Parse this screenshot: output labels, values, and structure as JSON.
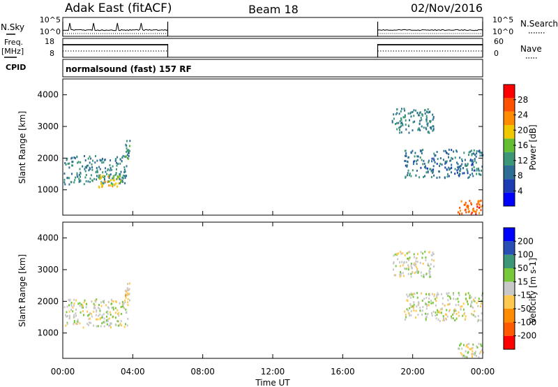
{
  "header": {
    "station": "Adak East (fitACF)",
    "beam": "Beam 18",
    "date": "02/Nov/2016"
  },
  "panels": {
    "nsky": {
      "label": "N.Sky",
      "ticks": [
        "10^5",
        "10^0"
      ],
      "right_label": "N.Search",
      "right_ticks": [
        "10^5",
        "10^0"
      ]
    },
    "freq": {
      "label_line1": "Freq.",
      "label_line2": "[MHz]",
      "ticks": [
        "18",
        "8"
      ],
      "right_label": "Nave",
      "right_ticks": [
        "60",
        "0"
      ],
      "cpid_label": "CPID"
    },
    "cpid": {
      "text": "normalsound (fast) 157 RF"
    }
  },
  "colors": {
    "power": [
      "#0000ff",
      "#1c3cb4",
      "#2e6e96",
      "#3c9678",
      "#64be32",
      "#f0c800",
      "#ff8c00",
      "#ff5000",
      "#ff0000"
    ],
    "velocity": [
      "#ff0000",
      "#ff5a00",
      "#ff8c00",
      "#ffc850",
      "#c8c8c8",
      "#78c83c",
      "#3c9678",
      "#2850b4",
      "#0000ff"
    ]
  },
  "chart_data": [
    {
      "type": "heatmap",
      "name": "power",
      "ylabel": "Slant Range [km]",
      "yticks": [
        1000,
        2000,
        3000,
        4000
      ],
      "ylim": [
        200,
        4500
      ],
      "colorbar": {
        "label": "Power [dB]",
        "ticks": [
          "4",
          "8",
          "12",
          "16",
          "20",
          "24",
          "28"
        ],
        "range": [
          0,
          30
        ]
      },
      "regions": [
        {
          "x_start": 0.05,
          "x_end": 3.7,
          "y_start": 1200,
          "y_end": 2100,
          "value": 10
        },
        {
          "x_start": 3.5,
          "x_end": 3.8,
          "y_start": 2000,
          "y_end": 2600,
          "value": 12
        },
        {
          "x_start": 2.0,
          "x_end": 3.3,
          "y_start": 1100,
          "y_end": 1500,
          "value": 18
        },
        {
          "x_start": 19.5,
          "x_end": 24,
          "y_start": 1400,
          "y_end": 2300,
          "value": 9
        },
        {
          "x_start": 18.8,
          "x_end": 21.2,
          "y_start": 2800,
          "y_end": 3600,
          "value": 10
        },
        {
          "x_start": 22.5,
          "x_end": 24,
          "y_start": 250,
          "y_end": 700,
          "value": 24
        }
      ]
    },
    {
      "type": "heatmap",
      "name": "velocity",
      "ylabel": "Slant Range [km]",
      "yticks": [
        1000,
        2000,
        3000,
        4000
      ],
      "ylim": [
        200,
        4500
      ],
      "colorbar": {
        "label": "Velocity [m s-1]",
        "ticks": [
          "-200",
          "-100",
          "-50",
          "-15",
          "15",
          "50",
          "100",
          "200"
        ],
        "range": [
          -250,
          250
        ]
      },
      "regions": [
        {
          "x_start": 0.05,
          "x_end": 3.7,
          "y_start": 1200,
          "y_end": 2100,
          "value": 0
        },
        {
          "x_start": 3.5,
          "x_end": 3.8,
          "y_start": 2000,
          "y_end": 2600,
          "value": -30
        },
        {
          "x_start": 19.5,
          "x_end": 24,
          "y_start": 1400,
          "y_end": 2300,
          "value": 0
        },
        {
          "x_start": 18.8,
          "x_end": 21.2,
          "y_start": 2800,
          "y_end": 3600,
          "value": 0
        },
        {
          "x_start": 22.5,
          "x_end": 24,
          "y_start": 250,
          "y_end": 700,
          "value": 0
        }
      ]
    }
  ],
  "xaxis": {
    "label": "Time UT",
    "ticks": [
      "00:00",
      "04:00",
      "08:00",
      "12:00",
      "16:00",
      "20:00",
      "00:00"
    ],
    "range": [
      0,
      24
    ]
  },
  "data_windows": [
    [
      0,
      6
    ],
    [
      18,
      24
    ]
  ]
}
